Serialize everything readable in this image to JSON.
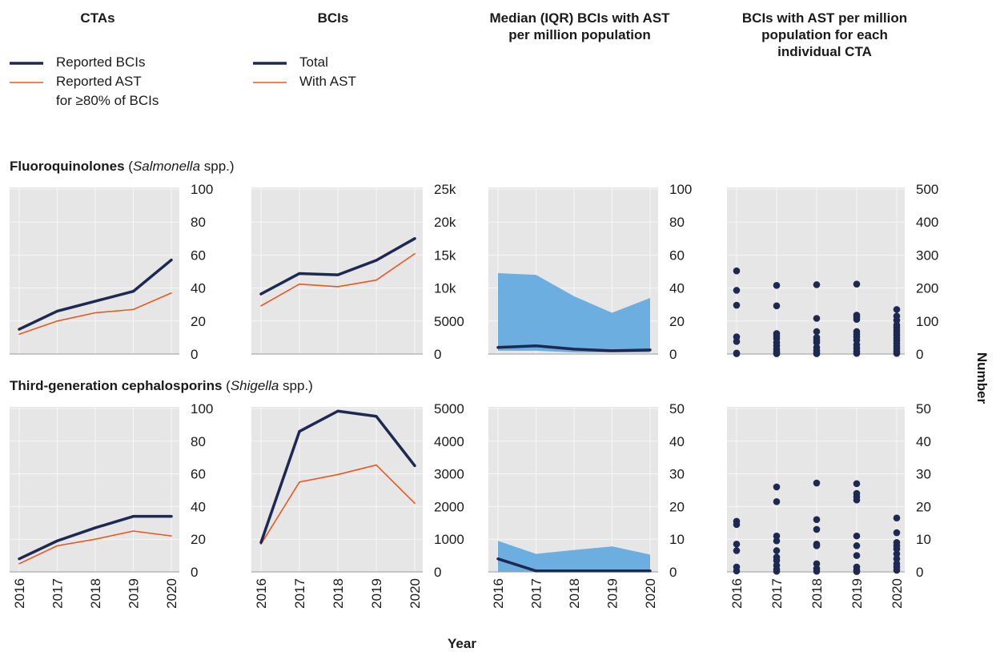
{
  "columns": {
    "ctas": "CTAs",
    "bcis": "BCIs",
    "median": "Median (IQR) BCIs with AST per million population",
    "individual": "BCIs with AST per million population for each individual CTA"
  },
  "legend_ctas": {
    "reported": "Reported BCIs",
    "ast_line1": "Reported AST",
    "ast_line2": "for ≥80% of BCIs"
  },
  "legend_bcis": {
    "total": "Total",
    "with_ast": "With AST"
  },
  "rows": [
    {
      "drug": "Fluoroquinolones",
      "organism": "Salmonella",
      "suffix": " spp.)"
    },
    {
      "drug": "Third-generation cephalosporins",
      "organism": "Shigella",
      "suffix": " spp.)"
    }
  ],
  "axis": {
    "x_title": "Year",
    "y_title": "Number"
  },
  "colors": {
    "navy": "#1d2951",
    "orange": "#e8581e",
    "band": "#6daee0",
    "panel": "#e6e6e6"
  },
  "chart_data": [
    {
      "id": "fq-ctas",
      "type": "line",
      "ylim": [
        0,
        100
      ],
      "yticks": [
        0,
        20,
        40,
        60,
        80,
        100
      ],
      "ytick_labels": [
        "0",
        "20",
        "40",
        "60",
        "80",
        "100"
      ],
      "x": [
        2016,
        2017,
        2018,
        2019,
        2020
      ],
      "series": [
        {
          "name": "Reported BCIs",
          "color": "navy",
          "values": [
            15,
            26,
            32,
            38,
            57
          ]
        },
        {
          "name": "Reported AST for ≥80% of BCIs",
          "color": "orange",
          "values": [
            12,
            20,
            25,
            27,
            37
          ]
        }
      ]
    },
    {
      "id": "fq-bcis",
      "type": "line",
      "ylim": [
        0,
        25000
      ],
      "yticks": [
        0,
        5000,
        10000,
        15000,
        20000,
        25000
      ],
      "ytick_labels": [
        "0",
        "5000",
        "10k",
        "15k",
        "20k",
        "25k"
      ],
      "x": [
        2016,
        2017,
        2018,
        2019,
        2020
      ],
      "series": [
        {
          "name": "Total",
          "color": "navy",
          "values": [
            9100,
            12200,
            12000,
            14200,
            17500
          ]
        },
        {
          "name": "With AST",
          "color": "orange",
          "values": [
            7300,
            10600,
            10200,
            11200,
            15200
          ]
        }
      ]
    },
    {
      "id": "fq-median",
      "type": "area",
      "ylim": [
        0,
        100
      ],
      "yticks": [
        0,
        20,
        40,
        60,
        80,
        100
      ],
      "ytick_labels": [
        "0",
        "20",
        "40",
        "60",
        "80",
        "100"
      ],
      "x": [
        2016,
        2017,
        2018,
        2019,
        2020
      ],
      "iqr_low": [
        2,
        2,
        1,
        1,
        1
      ],
      "iqr_high": [
        49,
        48,
        35,
        25,
        34
      ],
      "median": [
        4,
        5,
        3,
        2,
        2.5
      ]
    },
    {
      "id": "fq-individual",
      "type": "scatter",
      "ylim": [
        0,
        500
      ],
      "yticks": [
        0,
        100,
        200,
        300,
        400,
        500
      ],
      "ytick_labels": [
        "0",
        "100",
        "200",
        "300",
        "400",
        "500"
      ],
      "x": [
        2016,
        2017,
        2018,
        2019,
        2020
      ],
      "points": [
        [
          2016,
          252
        ],
        [
          2016,
          193
        ],
        [
          2016,
          148
        ],
        [
          2016,
          52
        ],
        [
          2016,
          38
        ],
        [
          2016,
          3
        ],
        [
          2016,
          1
        ],
        [
          2017,
          208
        ],
        [
          2017,
          146
        ],
        [
          2017,
          62
        ],
        [
          2017,
          55
        ],
        [
          2017,
          47
        ],
        [
          2017,
          35
        ],
        [
          2017,
          25
        ],
        [
          2017,
          15
        ],
        [
          2017,
          8
        ],
        [
          2017,
          4
        ],
        [
          2017,
          1
        ],
        [
          2018,
          210
        ],
        [
          2018,
          108
        ],
        [
          2018,
          68
        ],
        [
          2018,
          50
        ],
        [
          2018,
          42
        ],
        [
          2018,
          35
        ],
        [
          2018,
          20
        ],
        [
          2018,
          10
        ],
        [
          2018,
          3
        ],
        [
          2018,
          1
        ],
        [
          2019,
          212
        ],
        [
          2019,
          118
        ],
        [
          2019,
          112
        ],
        [
          2019,
          105
        ],
        [
          2019,
          68
        ],
        [
          2019,
          60
        ],
        [
          2019,
          52
        ],
        [
          2019,
          42
        ],
        [
          2019,
          28
        ],
        [
          2019,
          18
        ],
        [
          2019,
          8
        ],
        [
          2019,
          2
        ],
        [
          2020,
          135
        ],
        [
          2020,
          115
        ],
        [
          2020,
          102
        ],
        [
          2020,
          88
        ],
        [
          2020,
          80
        ],
        [
          2020,
          72
        ],
        [
          2020,
          64
        ],
        [
          2020,
          56
        ],
        [
          2020,
          48
        ],
        [
          2020,
          40
        ],
        [
          2020,
          32
        ],
        [
          2020,
          24
        ],
        [
          2020,
          16
        ],
        [
          2020,
          8
        ],
        [
          2020,
          2
        ]
      ]
    },
    {
      "id": "tg-ctas",
      "type": "line",
      "ylim": [
        0,
        100
      ],
      "yticks": [
        0,
        20,
        40,
        60,
        80,
        100
      ],
      "ytick_labels": [
        "0",
        "20",
        "40",
        "60",
        "80",
        "100"
      ],
      "x": [
        2016,
        2017,
        2018,
        2019,
        2020
      ],
      "series": [
        {
          "name": "Reported BCIs",
          "color": "navy",
          "values": [
            8,
            19,
            27,
            34,
            34
          ]
        },
        {
          "name": "Reported AST for ≥80% of BCIs",
          "color": "orange",
          "values": [
            5,
            16,
            20,
            25,
            22
          ]
        }
      ]
    },
    {
      "id": "tg-bcis",
      "type": "line",
      "ylim": [
        0,
        5000
      ],
      "yticks": [
        0,
        1000,
        2000,
        3000,
        4000,
        5000
      ],
      "ytick_labels": [
        "0",
        "1000",
        "2000",
        "3000",
        "4000",
        "5000"
      ],
      "x": [
        2016,
        2017,
        2018,
        2019,
        2020
      ],
      "series": [
        {
          "name": "Total",
          "color": "navy",
          "values": [
            900,
            4300,
            4920,
            4760,
            3250
          ]
        },
        {
          "name": "With AST",
          "color": "orange",
          "values": [
            850,
            2750,
            2980,
            3270,
            2100
          ]
        }
      ]
    },
    {
      "id": "tg-median",
      "type": "area",
      "ylim": [
        0,
        50
      ],
      "yticks": [
        0,
        10,
        20,
        30,
        40,
        50
      ],
      "ytick_labels": [
        "0",
        "10",
        "20",
        "30",
        "40",
        "50"
      ],
      "x": [
        2016,
        2017,
        2018,
        2019,
        2020
      ],
      "iqr_low": [
        0,
        0,
        0,
        0,
        0
      ],
      "iqr_high": [
        9.5,
        5.5,
        6.7,
        7.8,
        5.3
      ],
      "median": [
        4,
        0.3,
        0.3,
        0.3,
        0.3
      ]
    },
    {
      "id": "tg-individual",
      "type": "scatter",
      "ylim": [
        0,
        50
      ],
      "yticks": [
        0,
        10,
        20,
        30,
        40,
        50
      ],
      "ytick_labels": [
        "0",
        "10",
        "20",
        "30",
        "40",
        "50"
      ],
      "x": [
        2016,
        2017,
        2018,
        2019,
        2020
      ],
      "points": [
        [
          2016,
          15.5
        ],
        [
          2016,
          14.5
        ],
        [
          2016,
          8.5
        ],
        [
          2016,
          6.5
        ],
        [
          2016,
          1.5
        ],
        [
          2016,
          0.3
        ],
        [
          2017,
          26
        ],
        [
          2017,
          21.5
        ],
        [
          2017,
          11
        ],
        [
          2017,
          9.5
        ],
        [
          2017,
          6.5
        ],
        [
          2017,
          4.5
        ],
        [
          2017,
          3.5
        ],
        [
          2017,
          2
        ],
        [
          2017,
          0.8
        ],
        [
          2017,
          0.2
        ],
        [
          2018,
          27.2
        ],
        [
          2018,
          16
        ],
        [
          2018,
          13
        ],
        [
          2018,
          8.5
        ],
        [
          2018,
          8
        ],
        [
          2018,
          2.5
        ],
        [
          2018,
          1
        ],
        [
          2018,
          0.2
        ],
        [
          2019,
          27
        ],
        [
          2019,
          24
        ],
        [
          2019,
          23
        ],
        [
          2019,
          22
        ],
        [
          2019,
          11
        ],
        [
          2019,
          8
        ],
        [
          2019,
          5
        ],
        [
          2019,
          1.5
        ],
        [
          2019,
          0.5
        ],
        [
          2019,
          0.1
        ],
        [
          2020,
          16.5
        ],
        [
          2020,
          12
        ],
        [
          2020,
          9
        ],
        [
          2020,
          8
        ],
        [
          2020,
          7
        ],
        [
          2020,
          5.5
        ],
        [
          2020,
          4
        ],
        [
          2020,
          2.5
        ],
        [
          2020,
          1.5
        ],
        [
          2020,
          0.5
        ]
      ]
    }
  ]
}
